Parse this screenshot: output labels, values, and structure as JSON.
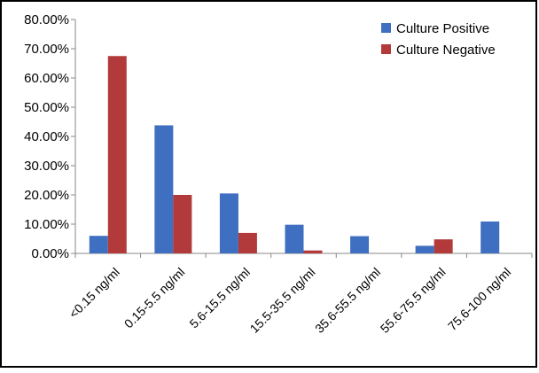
{
  "chart_data": {
    "type": "bar",
    "categories": [
      "<0.15 ng/ml",
      "0.15-5.5 ng/ml",
      "5.6-15.5 ng/ml",
      "15.5-35.5 ng/ml",
      "35.6-55.5 ng/ml",
      "55.6-75.5 ng/ml",
      "75.6-100 ng/ml"
    ],
    "series": [
      {
        "name": "Culture Positive",
        "color": "#3f6fc0",
        "values": [
          6.0,
          43.8,
          20.5,
          9.8,
          5.9,
          2.6,
          10.9
        ]
      },
      {
        "name": "Culture Negative",
        "color": "#b33a3a",
        "values": [
          67.5,
          20.0,
          7.0,
          1.0,
          0.0,
          4.8,
          0.0
        ]
      }
    ],
    "y_ticks": [
      "0.00%",
      "10.00%",
      "20.00%",
      "30.00%",
      "40.00%",
      "50.00%",
      "60.00%",
      "70.00%",
      "80.00%"
    ],
    "ylim": [
      0,
      80
    ],
    "legend_position": "top-right",
    "grid": false
  }
}
